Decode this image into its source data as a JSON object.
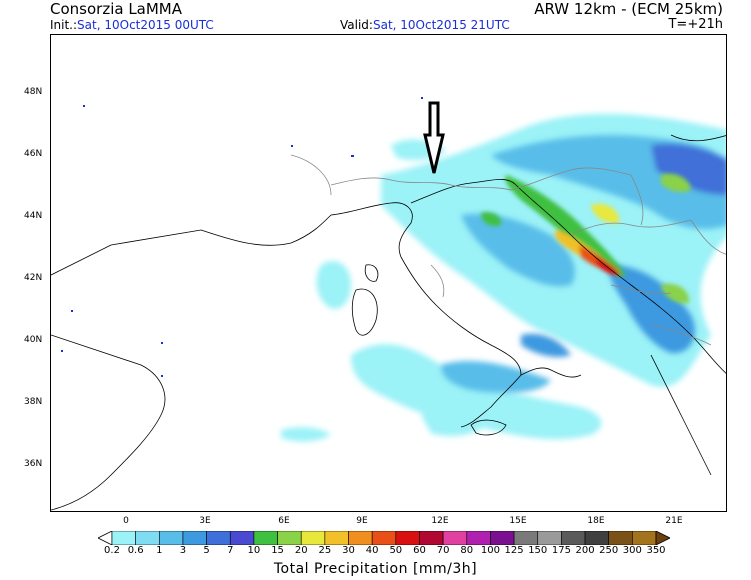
{
  "header": {
    "org": "Consorzia LaMMA",
    "model": "ARW 12km - (ECM 25km)",
    "init_label": "Init.:",
    "init_value": "Sat, 10Oct2015 00UTC",
    "valid_label": "Valid:",
    "valid_value": "Sat, 10Oct2015 21UTC",
    "timestep": "T=+21h"
  },
  "axes": {
    "lat_ticks": [
      "48N",
      "46N",
      "44N",
      "42N",
      "40N",
      "38N",
      "36N"
    ],
    "lon_ticks": [
      "0",
      "3E",
      "6E",
      "9E",
      "12E",
      "15E",
      "18E",
      "21E"
    ]
  },
  "colorbar": {
    "title": "Total Precipitation [mm/3h]",
    "labels": [
      "0.2",
      "0.6",
      "1",
      "3",
      "5",
      "7",
      "10",
      "15",
      "20",
      "25",
      "30",
      "40",
      "50",
      "60",
      "70",
      "80",
      "100",
      "125",
      "150",
      "175",
      "200",
      "250",
      "300",
      "350"
    ],
    "colors": [
      "#ffffff",
      "#9bf2f7",
      "#7fdcf2",
      "#58bde9",
      "#3d99e0",
      "#3f6fd8",
      "#4a4ad0",
      "#40c040",
      "#8ad248",
      "#e8e83c",
      "#f2c028",
      "#f08e20",
      "#e85018",
      "#d81010",
      "#b00830",
      "#e040a0",
      "#b020b0",
      "#7a1090",
      "#7a7a7a",
      "#9a9a9a",
      "#5a5a5a",
      "#404040",
      "#7a5218",
      "#a4741c",
      "#6a4010"
    ]
  },
  "annotation": {
    "arrow_icon": "down-arrow-icon"
  }
}
